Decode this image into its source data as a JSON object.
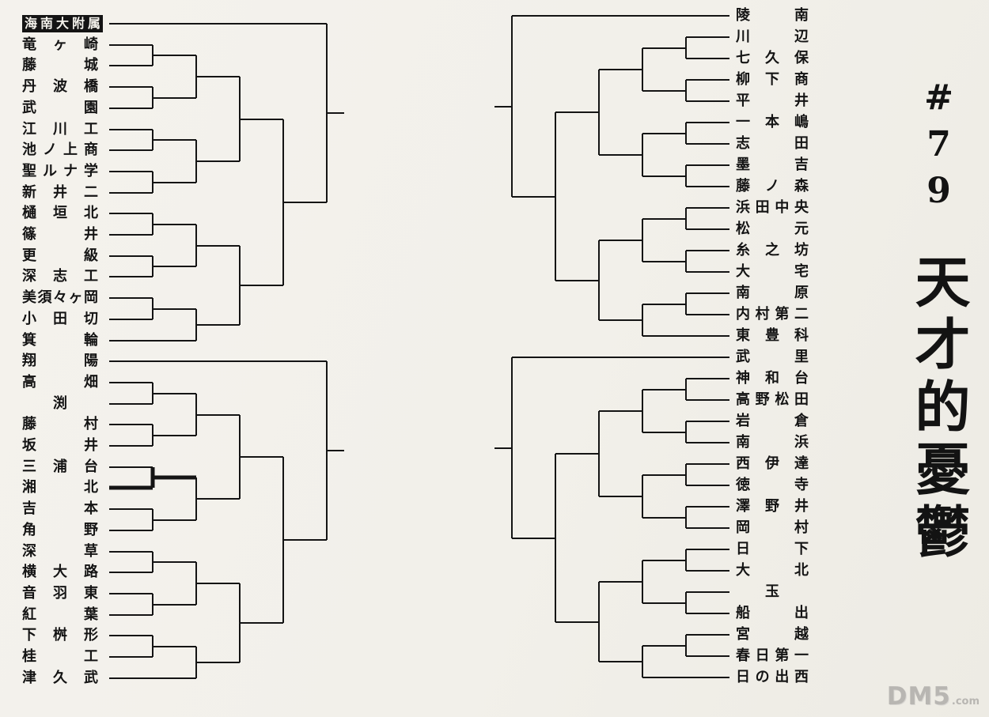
{
  "page": {
    "chapter_label": "#79",
    "chapter_title": "天才的憂鬱",
    "watermark_main": "DM5",
    "watermark_suffix": ".com",
    "paper_color": "#f2f0ea",
    "ink_color": "#141414"
  },
  "bracket": {
    "highlight_team": "湘北",
    "inverted_team": "海南大附属",
    "left_blocks": [
      [
        "海南大附属",
        [
          [
            [
              [
                "竜ヶ崎",
                "藤城"
              ],
              [
                "丹波橋",
                "武園"
              ]
            ],
            [
              [
                "江川工",
                "池ノ上商"
              ],
              [
                "聖ルナ学",
                "新井二"
              ]
            ]
          ],
          [
            [
              [
                "樋垣北",
                "篠井"
              ],
              [
                "更級",
                "深志工"
              ]
            ],
            [
              [
                "美須々ヶ岡",
                "小田切"
              ],
              "箕輪"
            ]
          ]
        ]
      ],
      [
        "翔陽",
        [
          [
            [
              [
                "高畑",
                "渕"
              ],
              [
                "藤村",
                "坂井"
              ]
            ],
            [
              [
                "三浦台",
                "湘北"
              ],
              [
                "吉本",
                "角野"
              ]
            ]
          ],
          [
            [
              [
                "深草",
                "横大路"
              ],
              [
                "音羽東",
                "紅葉"
              ]
            ],
            [
              [
                "下桝形",
                "桂工"
              ],
              "津久武"
            ]
          ]
        ]
      ]
    ],
    "right_blocks": [
      [
        "陵南",
        [
          [
            [
              [
                "川辺",
                "七久保"
              ],
              [
                "柳下商",
                "平井"
              ]
            ],
            [
              [
                "一本嶋",
                "志田"
              ],
              [
                "墨吉",
                "藤ノ森"
              ]
            ]
          ],
          [
            [
              [
                "浜田中央",
                "松元"
              ],
              [
                "糸之坊",
                "大宅"
              ]
            ],
            [
              [
                "南原",
                "内村第二"
              ],
              "東豊科"
            ]
          ]
        ]
      ],
      [
        "武里",
        [
          [
            [
              [
                "神和台",
                "高野松田"
              ],
              [
                "岩倉",
                "南浜"
              ]
            ],
            [
              [
                "西伊達",
                "徳寺"
              ],
              [
                "澤野井",
                "岡村"
              ]
            ]
          ],
          [
            [
              [
                "日下",
                "大北"
              ],
              [
                "玉",
                "船出"
              ]
            ],
            [
              [
                "宮越",
                "春日第一"
              ],
              "日の出西"
            ]
          ]
        ]
      ]
    ]
  }
}
